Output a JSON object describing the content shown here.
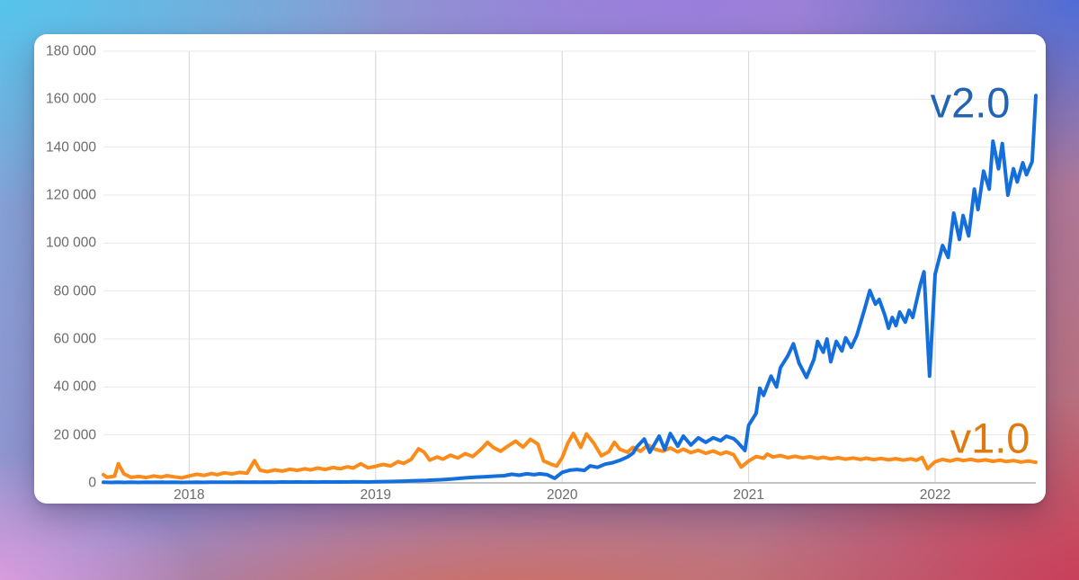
{
  "chart_data": {
    "type": "line",
    "title": "",
    "xlabel": "",
    "ylabel": "",
    "x_domain": [
      2017.54,
      2022.54
    ],
    "y_domain": [
      0,
      180000
    ],
    "grid": true,
    "legend_position": "inline-end-of-line-labels",
    "x_ticks": [
      {
        "value": 2018,
        "label": "2018"
      },
      {
        "value": 2019,
        "label": "2019"
      },
      {
        "value": 2020,
        "label": "2020"
      },
      {
        "value": 2021,
        "label": "2021"
      },
      {
        "value": 2022,
        "label": "2022"
      }
    ],
    "y_ticks": [
      {
        "value": 0,
        "label": "0"
      },
      {
        "value": 20000,
        "label": "20 000"
      },
      {
        "value": 40000,
        "label": "40 000"
      },
      {
        "value": 60000,
        "label": "60 000"
      },
      {
        "value": 80000,
        "label": "80 000"
      },
      {
        "value": 100000,
        "label": "100 000"
      },
      {
        "value": 120000,
        "label": "120 000"
      },
      {
        "value": 140000,
        "label": "140 000"
      },
      {
        "value": 160000,
        "label": "160 000"
      },
      {
        "value": 180000,
        "label": "180 000"
      }
    ],
    "colors": {
      "grid_horizontal": "#e8e8e8",
      "grid_vertical": "#d6d6d6",
      "zero_line": "#b0b0b0",
      "tick_text": "#6b6b6b"
    },
    "series": [
      {
        "name": "v2.0",
        "color": "#146fdc",
        "label_color": "#2164b4",
        "points": [
          [
            2017.54,
            250
          ],
          [
            2017.58,
            180
          ],
          [
            2017.62,
            280
          ],
          [
            2017.65,
            200
          ],
          [
            2017.69,
            250
          ],
          [
            2017.73,
            190
          ],
          [
            2017.77,
            260
          ],
          [
            2017.81,
            210
          ],
          [
            2017.85,
            270
          ],
          [
            2017.88,
            220
          ],
          [
            2017.92,
            260
          ],
          [
            2017.96,
            180
          ],
          [
            2018.0,
            240
          ],
          [
            2018.04,
            290
          ],
          [
            2018.08,
            230
          ],
          [
            2018.12,
            300
          ],
          [
            2018.15,
            250
          ],
          [
            2018.19,
            310
          ],
          [
            2018.23,
            260
          ],
          [
            2018.27,
            320
          ],
          [
            2018.31,
            270
          ],
          [
            2018.35,
            330
          ],
          [
            2018.38,
            290
          ],
          [
            2018.42,
            350
          ],
          [
            2018.46,
            300
          ],
          [
            2018.5,
            360
          ],
          [
            2018.54,
            320
          ],
          [
            2018.58,
            380
          ],
          [
            2018.62,
            330
          ],
          [
            2018.65,
            390
          ],
          [
            2018.69,
            350
          ],
          [
            2018.73,
            410
          ],
          [
            2018.77,
            360
          ],
          [
            2018.81,
            420
          ],
          [
            2018.85,
            380
          ],
          [
            2018.88,
            440
          ],
          [
            2018.92,
            400
          ],
          [
            2018.96,
            390
          ],
          [
            2019.0,
            460
          ],
          [
            2019.04,
            520
          ],
          [
            2019.08,
            580
          ],
          [
            2019.12,
            650
          ],
          [
            2019.15,
            730
          ],
          [
            2019.19,
            820
          ],
          [
            2019.23,
            920
          ],
          [
            2019.27,
            1030
          ],
          [
            2019.31,
            1150
          ],
          [
            2019.35,
            1300
          ],
          [
            2019.38,
            1450
          ],
          [
            2019.42,
            1700
          ],
          [
            2019.46,
            2000
          ],
          [
            2019.5,
            2200
          ],
          [
            2019.54,
            2400
          ],
          [
            2019.58,
            2550
          ],
          [
            2019.62,
            2700
          ],
          [
            2019.65,
            2850
          ],
          [
            2019.69,
            3000
          ],
          [
            2019.73,
            3600
          ],
          [
            2019.77,
            3200
          ],
          [
            2019.81,
            3800
          ],
          [
            2019.85,
            3400
          ],
          [
            2019.88,
            3800
          ],
          [
            2019.92,
            3400
          ],
          [
            2019.96,
            1900
          ],
          [
            2020.0,
            4400
          ],
          [
            2020.04,
            5300
          ],
          [
            2020.08,
            5600
          ],
          [
            2020.12,
            5200
          ],
          [
            2020.15,
            7100
          ],
          [
            2020.19,
            6500
          ],
          [
            2020.23,
            7800
          ],
          [
            2020.27,
            8400
          ],
          [
            2020.31,
            9400
          ],
          [
            2020.35,
            10800
          ],
          [
            2020.38,
            12400
          ],
          [
            2020.4,
            15000
          ],
          [
            2020.44,
            18300
          ],
          [
            2020.47,
            12800
          ],
          [
            2020.52,
            19500
          ],
          [
            2020.55,
            13900
          ],
          [
            2020.58,
            20600
          ],
          [
            2020.62,
            15300
          ],
          [
            2020.65,
            19500
          ],
          [
            2020.69,
            15800
          ],
          [
            2020.73,
            18800
          ],
          [
            2020.77,
            16900
          ],
          [
            2020.81,
            18800
          ],
          [
            2020.85,
            17600
          ],
          [
            2020.88,
            19500
          ],
          [
            2020.92,
            18400
          ],
          [
            2020.94,
            17000
          ],
          [
            2020.98,
            13500
          ],
          [
            2021.0,
            24000
          ],
          [
            2021.04,
            29000
          ],
          [
            2021.06,
            39500
          ],
          [
            2021.08,
            36500
          ],
          [
            2021.12,
            44500
          ],
          [
            2021.15,
            40000
          ],
          [
            2021.17,
            48000
          ],
          [
            2021.21,
            53000
          ],
          [
            2021.24,
            58000
          ],
          [
            2021.27,
            50000
          ],
          [
            2021.31,
            44000
          ],
          [
            2021.35,
            51500
          ],
          [
            2021.37,
            59000
          ],
          [
            2021.4,
            54500
          ],
          [
            2021.42,
            60000
          ],
          [
            2021.44,
            50500
          ],
          [
            2021.47,
            59000
          ],
          [
            2021.5,
            55000
          ],
          [
            2021.52,
            60500
          ],
          [
            2021.55,
            56500
          ],
          [
            2021.58,
            61500
          ],
          [
            2021.62,
            72000
          ],
          [
            2021.65,
            80200
          ],
          [
            2021.68,
            74500
          ],
          [
            2021.7,
            76500
          ],
          [
            2021.73,
            70000
          ],
          [
            2021.75,
            64500
          ],
          [
            2021.77,
            69000
          ],
          [
            2021.79,
            65600
          ],
          [
            2021.81,
            71200
          ],
          [
            2021.84,
            67000
          ],
          [
            2021.86,
            72000
          ],
          [
            2021.88,
            69000
          ],
          [
            2021.92,
            82500
          ],
          [
            2021.94,
            88000
          ],
          [
            2021.97,
            44500
          ],
          [
            2022.0,
            87000
          ],
          [
            2022.04,
            99000
          ],
          [
            2022.07,
            94000
          ],
          [
            2022.1,
            112500
          ],
          [
            2022.13,
            101500
          ],
          [
            2022.15,
            111500
          ],
          [
            2022.18,
            103000
          ],
          [
            2022.21,
            122500
          ],
          [
            2022.23,
            114000
          ],
          [
            2022.26,
            130000
          ],
          [
            2022.29,
            122500
          ],
          [
            2022.31,
            142500
          ],
          [
            2022.34,
            131000
          ],
          [
            2022.36,
            141500
          ],
          [
            2022.39,
            120000
          ],
          [
            2022.42,
            131000
          ],
          [
            2022.44,
            125500
          ],
          [
            2022.47,
            133500
          ],
          [
            2022.49,
            128500
          ],
          [
            2022.52,
            134000
          ],
          [
            2022.54,
            161500
          ]
        ]
      },
      {
        "name": "v1.0",
        "color": "#fb8b1b",
        "label_color": "#e0790e",
        "points": [
          [
            2017.54,
            3400
          ],
          [
            2017.56,
            2300
          ],
          [
            2017.6,
            2800
          ],
          [
            2017.62,
            8000
          ],
          [
            2017.65,
            3800
          ],
          [
            2017.69,
            2300
          ],
          [
            2017.73,
            2700
          ],
          [
            2017.77,
            2200
          ],
          [
            2017.81,
            2900
          ],
          [
            2017.85,
            2400
          ],
          [
            2017.88,
            3000
          ],
          [
            2017.92,
            2500
          ],
          [
            2017.96,
            2100
          ],
          [
            2018.0,
            2900
          ],
          [
            2018.04,
            3600
          ],
          [
            2018.08,
            3100
          ],
          [
            2018.12,
            3900
          ],
          [
            2018.15,
            3400
          ],
          [
            2018.19,
            4200
          ],
          [
            2018.23,
            3700
          ],
          [
            2018.27,
            4400
          ],
          [
            2018.31,
            4000
          ],
          [
            2018.35,
            9300
          ],
          [
            2018.38,
            5300
          ],
          [
            2018.42,
            4700
          ],
          [
            2018.46,
            5400
          ],
          [
            2018.5,
            4900
          ],
          [
            2018.54,
            5700
          ],
          [
            2018.58,
            5200
          ],
          [
            2018.62,
            5900
          ],
          [
            2018.65,
            5400
          ],
          [
            2018.69,
            6200
          ],
          [
            2018.73,
            5600
          ],
          [
            2018.77,
            6400
          ],
          [
            2018.81,
            5900
          ],
          [
            2018.85,
            6700
          ],
          [
            2018.88,
            6200
          ],
          [
            2018.92,
            8000
          ],
          [
            2018.96,
            6300
          ],
          [
            2019.0,
            6900
          ],
          [
            2019.04,
            7700
          ],
          [
            2019.08,
            7100
          ],
          [
            2019.12,
            8900
          ],
          [
            2019.15,
            8100
          ],
          [
            2019.19,
            9800
          ],
          [
            2019.23,
            14200
          ],
          [
            2019.26,
            12800
          ],
          [
            2019.29,
            9500
          ],
          [
            2019.33,
            10800
          ],
          [
            2019.36,
            9900
          ],
          [
            2019.4,
            11500
          ],
          [
            2019.44,
            10400
          ],
          [
            2019.48,
            12200
          ],
          [
            2019.52,
            11000
          ],
          [
            2019.56,
            13600
          ],
          [
            2019.6,
            16900
          ],
          [
            2019.63,
            14800
          ],
          [
            2019.67,
            13200
          ],
          [
            2019.71,
            15400
          ],
          [
            2019.75,
            17400
          ],
          [
            2019.79,
            14900
          ],
          [
            2019.83,
            18200
          ],
          [
            2019.87,
            16200
          ],
          [
            2019.9,
            9200
          ],
          [
            2019.94,
            7800
          ],
          [
            2019.97,
            7000
          ],
          [
            2020.0,
            10500
          ],
          [
            2020.03,
            16500
          ],
          [
            2020.06,
            20600
          ],
          [
            2020.1,
            14800
          ],
          [
            2020.13,
            20400
          ],
          [
            2020.17,
            16500
          ],
          [
            2020.21,
            11300
          ],
          [
            2020.25,
            13000
          ],
          [
            2020.28,
            16900
          ],
          [
            2020.31,
            14000
          ],
          [
            2020.35,
            12800
          ],
          [
            2020.38,
            14800
          ],
          [
            2020.42,
            13200
          ],
          [
            2020.46,
            15800
          ],
          [
            2020.5,
            14000
          ],
          [
            2020.54,
            13200
          ],
          [
            2020.58,
            14600
          ],
          [
            2020.62,
            12900
          ],
          [
            2020.65,
            14100
          ],
          [
            2020.69,
            12600
          ],
          [
            2020.73,
            13600
          ],
          [
            2020.77,
            12300
          ],
          [
            2020.81,
            13300
          ],
          [
            2020.85,
            12000
          ],
          [
            2020.88,
            12900
          ],
          [
            2020.92,
            11700
          ],
          [
            2020.96,
            6600
          ],
          [
            2021.0,
            9100
          ],
          [
            2021.04,
            11000
          ],
          [
            2021.08,
            10300
          ],
          [
            2021.1,
            12000
          ],
          [
            2021.13,
            10800
          ],
          [
            2021.17,
            11400
          ],
          [
            2021.21,
            10500
          ],
          [
            2021.25,
            11100
          ],
          [
            2021.29,
            10400
          ],
          [
            2021.33,
            10900
          ],
          [
            2021.37,
            10200
          ],
          [
            2021.4,
            10700
          ],
          [
            2021.44,
            10000
          ],
          [
            2021.48,
            10500
          ],
          [
            2021.52,
            9900
          ],
          [
            2021.56,
            10400
          ],
          [
            2021.6,
            9800
          ],
          [
            2021.63,
            10300
          ],
          [
            2021.67,
            9700
          ],
          [
            2021.71,
            10200
          ],
          [
            2021.75,
            9600
          ],
          [
            2021.79,
            10100
          ],
          [
            2021.83,
            9500
          ],
          [
            2021.87,
            10000
          ],
          [
            2021.9,
            9400
          ],
          [
            2021.93,
            10600
          ],
          [
            2021.96,
            5900
          ],
          [
            2021.98,
            7500
          ],
          [
            2022.0,
            8800
          ],
          [
            2022.04,
            9800
          ],
          [
            2022.08,
            9100
          ],
          [
            2022.12,
            9900
          ],
          [
            2022.15,
            9300
          ],
          [
            2022.19,
            9800
          ],
          [
            2022.23,
            9200
          ],
          [
            2022.27,
            9600
          ],
          [
            2022.31,
            9000
          ],
          [
            2022.35,
            9500
          ],
          [
            2022.38,
            8900
          ],
          [
            2022.42,
            9300
          ],
          [
            2022.46,
            8700
          ],
          [
            2022.5,
            9100
          ],
          [
            2022.54,
            8600
          ]
        ]
      }
    ]
  },
  "canvas": {
    "card_color": "#ffffff",
    "background_palette": [
      "#54c6ec",
      "#9c79e2",
      "#4a6cd8",
      "#f2a0e0",
      "#df6a48",
      "#cb3558"
    ]
  }
}
